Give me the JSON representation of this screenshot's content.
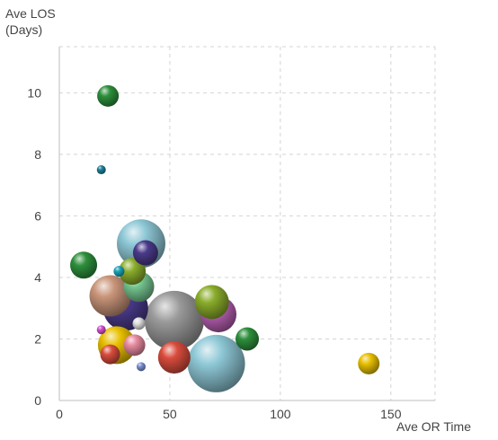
{
  "chart_data": {
    "type": "scatter",
    "subtype": "bubble",
    "title": "",
    "xlabel": "Ave OR Time",
    "ylabel": [
      "Ave LOS",
      "(Days)"
    ],
    "xlim": [
      0,
      170
    ],
    "ylim": [
      0,
      11.5
    ],
    "xticks": [
      "0",
      "50",
      "100",
      "150"
    ],
    "yticks": [
      "0",
      "2",
      "4",
      "6",
      "8",
      "10"
    ],
    "grid": true,
    "legend": "none",
    "points": [
      {
        "x": 52,
        "y": 2.6,
        "r": 33,
        "color": "#9a9a9a"
      },
      {
        "x": 71,
        "y": 1.2,
        "r": 32,
        "color": "#8ec8d6"
      },
      {
        "x": 37,
        "y": 5.1,
        "r": 27,
        "color": "#8ec8d6"
      },
      {
        "x": 72,
        "y": 2.8,
        "r": 20,
        "color": "#b55fb0"
      },
      {
        "x": 30,
        "y": 3.0,
        "r": 25,
        "color": "#4a3a8a"
      },
      {
        "x": 39,
        "y": 4.8,
        "r": 14,
        "color": "#4a3a8a"
      },
      {
        "x": 36,
        "y": 3.7,
        "r": 17,
        "color": "#74c48f"
      },
      {
        "x": 23,
        "y": 3.4,
        "r": 23,
        "color": "#c9957a"
      },
      {
        "x": 52,
        "y": 1.4,
        "r": 18,
        "color": "#d94c3d"
      },
      {
        "x": 69,
        "y": 3.2,
        "r": 19,
        "color": "#8aac2b"
      },
      {
        "x": 33,
        "y": 4.2,
        "r": 15,
        "color": "#8aac2b"
      },
      {
        "x": 26,
        "y": 1.8,
        "r": 21,
        "color": "#e8c000"
      },
      {
        "x": 23,
        "y": 1.5,
        "r": 11,
        "color": "#d94c3d"
      },
      {
        "x": 34,
        "y": 1.8,
        "r": 12,
        "color": "#e78aa0"
      },
      {
        "x": 11,
        "y": 4.4,
        "r": 15,
        "color": "#2d8f3c"
      },
      {
        "x": 85,
        "y": 2.0,
        "r": 13,
        "color": "#2d8f3c"
      },
      {
        "x": 22,
        "y": 9.9,
        "r": 12,
        "color": "#2d8f3c"
      },
      {
        "x": 140,
        "y": 1.2,
        "r": 12,
        "color": "#e8c000"
      },
      {
        "x": 36,
        "y": 2.5,
        "r": 7,
        "color": "#e0e0e0"
      },
      {
        "x": 27,
        "y": 4.2,
        "r": 6,
        "color": "#1aa4b8"
      },
      {
        "x": 19,
        "y": 2.3,
        "r": 5,
        "color": "#d04fd0"
      },
      {
        "x": 19,
        "y": 7.5,
        "r": 5,
        "color": "#1f7f96"
      },
      {
        "x": 37,
        "y": 1.1,
        "r": 5,
        "color": "#7a8fd0"
      }
    ]
  }
}
